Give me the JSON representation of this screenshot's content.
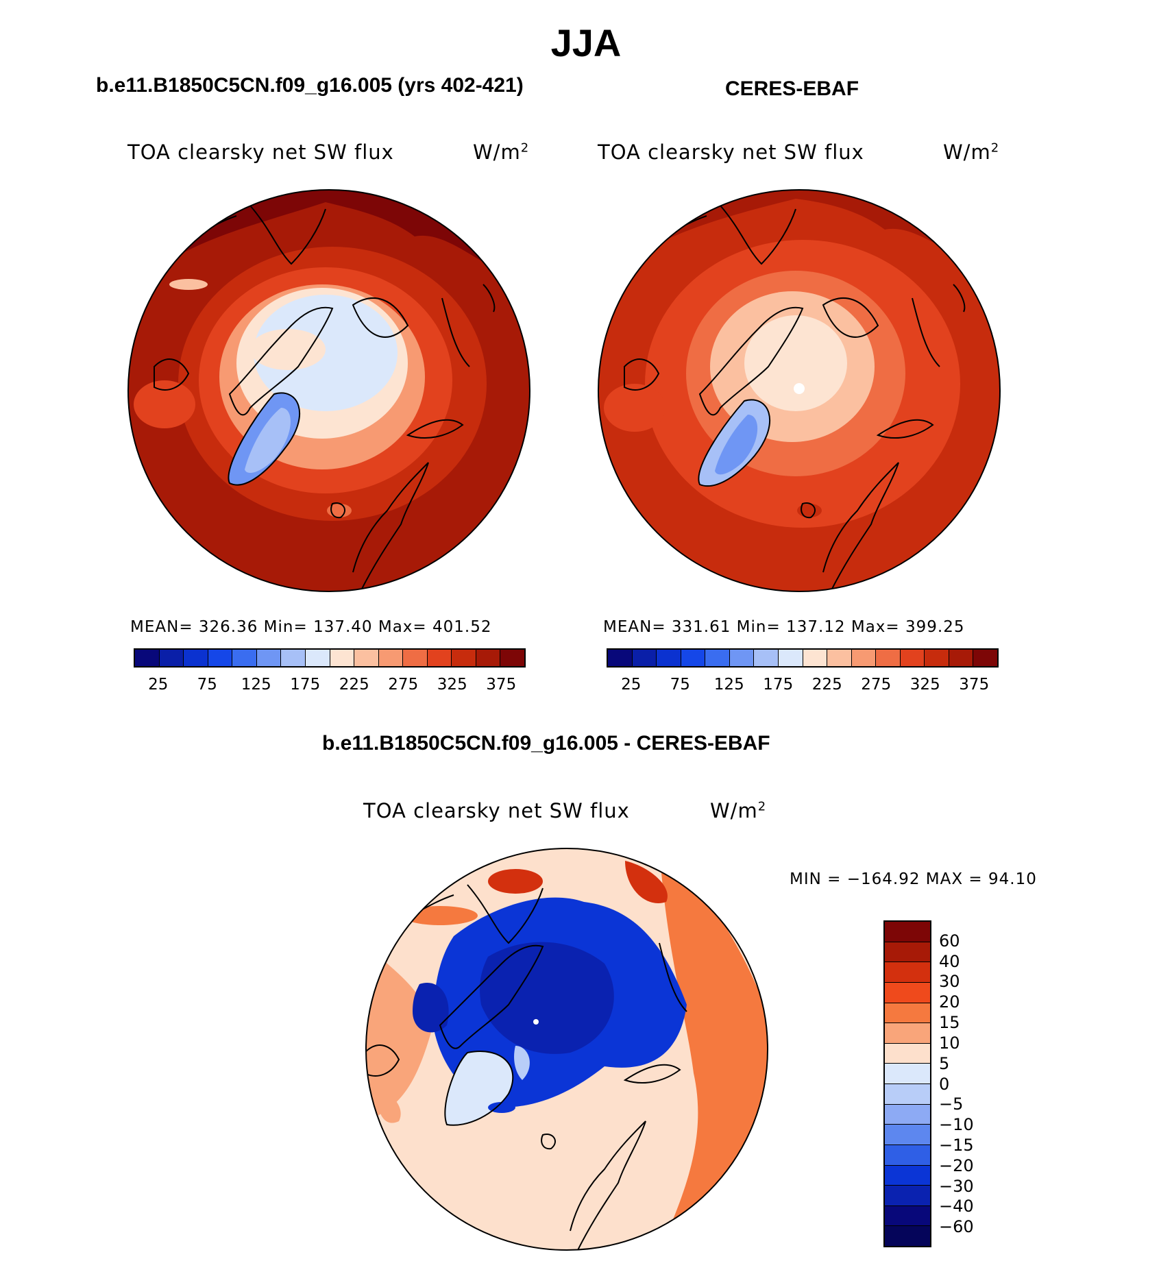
{
  "figure_title": "JJA",
  "panel_left": {
    "case_title": "b.e11.B1850C5CN.f09_g16.005 (yrs 402-421)",
    "variable": "TOA clearsky net SW flux",
    "units_base": "W/m",
    "units_exp": "2",
    "stats": "MEAN= 326.36   Min= 137.40   Max= 401.52"
  },
  "panel_right": {
    "case_title": "CERES-EBAF",
    "variable": "TOA clearsky net SW flux",
    "units_base": "W/m",
    "units_exp": "2",
    "stats": "MEAN= 331.61   Min= 137.12   Max= 399.25"
  },
  "panel_diff": {
    "case_title": "b.e11.B1850C5CN.f09_g16.005 - CERES-EBAF",
    "variable": "TOA clearsky net SW flux",
    "units_base": "W/m",
    "units_exp": "2",
    "stats": "MIN = −164.92 MAX =   94.10"
  },
  "colorbar_abs": {
    "colors": [
      "#08087a",
      "#0a1fa8",
      "#0b32d0",
      "#1547e8",
      "#3a6df0",
      "#6f96f4",
      "#a7c0f7",
      "#dbe8fb",
      "#fde4d2",
      "#fbc0a0",
      "#f79a72",
      "#ef6d44",
      "#e2421e",
      "#c72c0d",
      "#a71a07",
      "#7d0606"
    ],
    "tick_labels": [
      "25",
      "75",
      "125",
      "175",
      "225",
      "275",
      "325",
      "375"
    ]
  },
  "colorbar_diff": {
    "colors": [
      "#7d0606",
      "#a71a07",
      "#d3300e",
      "#ef4a1c",
      "#f5793f",
      "#f9a57a",
      "#fde0cc",
      "#dbe8fb",
      "#b8cdf8",
      "#8daaf4",
      "#5d87ef",
      "#2f5fe6",
      "#0b35d6",
      "#0a22b0",
      "#08087a"
    ],
    "tick_labels": [
      "60",
      "40",
      "30",
      "20",
      "15",
      "10",
      "5",
      "0",
      "−5",
      "−10",
      "−15",
      "−20",
      "−30",
      "−40",
      "−60"
    ]
  }
}
